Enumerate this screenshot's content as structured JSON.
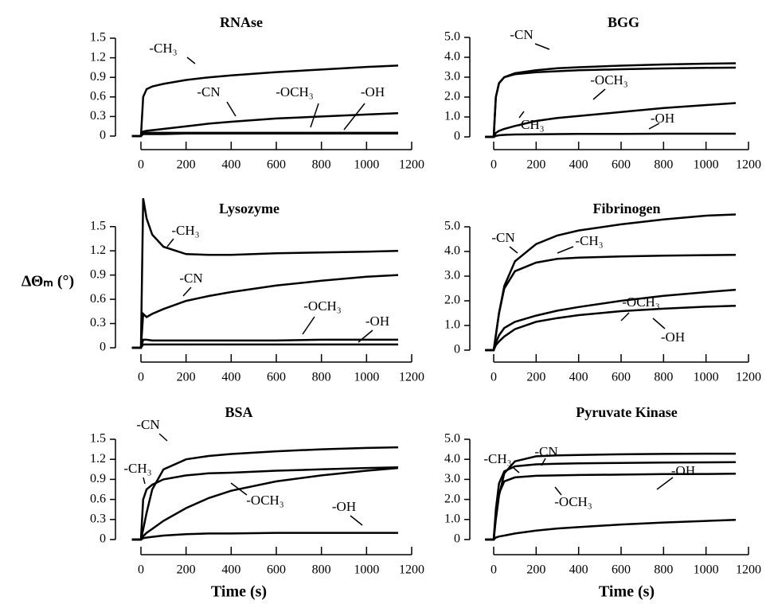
{
  "chart_data": [
    {
      "type": "line",
      "title": "RNAse",
      "xlim": [
        -60,
        1200
      ],
      "xticks": [
        0,
        200,
        400,
        600,
        800,
        1000,
        1200
      ],
      "ylim": [
        0,
        1.5
      ],
      "yticks": [
        0,
        0.3,
        0.6,
        0.9,
        1.2,
        1.5
      ],
      "x": [
        -40,
        0,
        10,
        25,
        50,
        100,
        200,
        300,
        400,
        600,
        800,
        1000,
        1140
      ],
      "series": [
        {
          "name": "-CH₃",
          "color": "#000000",
          "values": [
            0,
            0,
            0.6,
            0.72,
            0.76,
            0.8,
            0.86,
            0.9,
            0.93,
            0.98,
            1.02,
            1.06,
            1.08
          ]
        },
        {
          "name": "-CN",
          "color": "#000000",
          "values": [
            0,
            0,
            0.07,
            0.08,
            0.09,
            0.11,
            0.15,
            0.19,
            0.22,
            0.27,
            0.3,
            0.33,
            0.35
          ]
        },
        {
          "name": "-OCH₃",
          "color": "#000000",
          "values": [
            0,
            0,
            0.04,
            0.05,
            0.05,
            0.05,
            0.05,
            0.05,
            0.05,
            0.05,
            0.05,
            0.05,
            0.05
          ]
        },
        {
          "name": "-OH",
          "color": "#000000",
          "values": [
            0,
            0,
            0.03,
            0.03,
            0.03,
            0.03,
            0.04,
            0.04,
            0.04,
            0.04,
            0.04,
            0.04,
            0.04
          ]
        }
      ]
    },
    {
      "type": "line",
      "title": "BGG",
      "xlim": [
        -60,
        1200
      ],
      "xticks": [
        0,
        200,
        400,
        600,
        800,
        1000,
        1200
      ],
      "ylim": [
        0,
        5
      ],
      "yticks": [
        0,
        {
          "value": 1,
          "label": "1.0"
        },
        {
          "value": 2,
          "label": "2.0"
        },
        {
          "value": 3,
          "label": "3.0"
        },
        {
          "value": 4,
          "label": "4.0"
        },
        {
          "value": 5,
          "label": "5.0"
        }
      ],
      "x": [
        -40,
        0,
        10,
        25,
        50,
        100,
        200,
        300,
        400,
        600,
        800,
        1000,
        1140
      ],
      "series": [
        {
          "name": "-CN",
          "color": "#000000",
          "values": [
            0,
            0,
            2.0,
            2.7,
            3.0,
            3.2,
            3.35,
            3.45,
            3.5,
            3.58,
            3.64,
            3.68,
            3.7
          ]
        },
        {
          "name": "-CH₃",
          "color": "#000000",
          "values": [
            0,
            0,
            2.0,
            2.7,
            3.0,
            3.15,
            3.25,
            3.3,
            3.35,
            3.4,
            3.44,
            3.47,
            3.48
          ]
        },
        {
          "name": "-OCH₃",
          "color": "#000000",
          "values": [
            0,
            0,
            0.2,
            0.3,
            0.4,
            0.55,
            0.8,
            0.95,
            1.05,
            1.25,
            1.45,
            1.6,
            1.7
          ]
        },
        {
          "name": "-OH",
          "color": "#000000",
          "values": [
            0,
            0,
            0.05,
            0.08,
            0.1,
            0.12,
            0.13,
            0.14,
            0.15,
            0.15,
            0.16,
            0.16,
            0.16
          ]
        }
      ]
    },
    {
      "type": "line",
      "title": "Lysozyme",
      "ylabel": "ΔΘₘ (°)",
      "xlim": [
        -60,
        1200
      ],
      "xticks": [
        0,
        200,
        400,
        600,
        800,
        1000,
        1200
      ],
      "ylim": [
        0,
        2.0
      ],
      "yticks": [
        0,
        0.3,
        0.6,
        0.9,
        1.2,
        1.5
      ],
      "x": [
        -40,
        0,
        10,
        25,
        50,
        100,
        200,
        300,
        400,
        600,
        800,
        1000,
        1140
      ],
      "series": [
        {
          "name": "-CH₃",
          "color": "#000000",
          "values": [
            0,
            0,
            1.85,
            1.6,
            1.4,
            1.25,
            1.16,
            1.15,
            1.15,
            1.17,
            1.18,
            1.19,
            1.2
          ]
        },
        {
          "name": "-CN",
          "color": "#000000",
          "values": [
            0,
            0,
            0.42,
            0.38,
            0.42,
            0.48,
            0.58,
            0.64,
            0.69,
            0.77,
            0.83,
            0.88,
            0.9
          ]
        },
        {
          "name": "-OCH₃",
          "color": "#000000",
          "values": [
            0,
            0,
            0.1,
            0.1,
            0.09,
            0.09,
            0.09,
            0.09,
            0.09,
            0.09,
            0.1,
            0.1,
            0.1
          ]
        },
        {
          "name": "-OH",
          "color": "#000000",
          "values": [
            0,
            0,
            0.04,
            0.04,
            0.04,
            0.04,
            0.04,
            0.04,
            0.04,
            0.04,
            0.04,
            0.04,
            0.04
          ]
        }
      ]
    },
    {
      "type": "line",
      "title": "Fibrinogen",
      "xlim": [
        -60,
        1200
      ],
      "xticks": [
        0,
        200,
        400,
        600,
        800,
        1000,
        1200
      ],
      "ylim": [
        0,
        5.5
      ],
      "yticks": [
        0,
        {
          "value": 1,
          "label": "1.0"
        },
        {
          "value": 2,
          "label": "2.0"
        },
        {
          "value": 3,
          "label": "3.0"
        },
        {
          "value": 4,
          "label": "4.0"
        },
        {
          "value": 5,
          "label": "5.0"
        }
      ],
      "x": [
        -40,
        0,
        10,
        25,
        50,
        100,
        200,
        300,
        400,
        600,
        800,
        1000,
        1140
      ],
      "series": [
        {
          "name": "-CN",
          "color": "#000000",
          "values": [
            0,
            0,
            0.6,
            1.5,
            2.6,
            3.6,
            4.3,
            4.65,
            4.85,
            5.1,
            5.3,
            5.45,
            5.5
          ]
        },
        {
          "name": "-CH₃",
          "color": "#000000",
          "values": [
            0,
            0,
            0.6,
            1.5,
            2.5,
            3.2,
            3.55,
            3.7,
            3.75,
            3.8,
            3.83,
            3.85,
            3.86
          ]
        },
        {
          "name": "-OCH₃",
          "color": "#000000",
          "values": [
            0,
            0,
            0.3,
            0.6,
            0.9,
            1.15,
            1.4,
            1.6,
            1.75,
            2.0,
            2.2,
            2.35,
            2.45
          ]
        },
        {
          "name": "-OH",
          "color": "#000000",
          "values": [
            0,
            0,
            0.2,
            0.35,
            0.55,
            0.85,
            1.15,
            1.3,
            1.42,
            1.58,
            1.68,
            1.76,
            1.8
          ]
        }
      ]
    },
    {
      "type": "line",
      "title": "BSA",
      "xlabel": "Time (s)",
      "xlim": [
        -60,
        1200
      ],
      "xticks": [
        0,
        200,
        400,
        600,
        800,
        1000,
        1200
      ],
      "ylim": [
        0,
        1.5
      ],
      "yticks": [
        0,
        0.3,
        0.6,
        0.9,
        1.2,
        1.5
      ],
      "x": [
        -40,
        0,
        10,
        25,
        50,
        100,
        200,
        300,
        400,
        600,
        800,
        1000,
        1140
      ],
      "series": [
        {
          "name": "-CN",
          "color": "#000000",
          "values": [
            0,
            0,
            0.15,
            0.4,
            0.75,
            1.05,
            1.2,
            1.25,
            1.28,
            1.32,
            1.35,
            1.37,
            1.38
          ]
        },
        {
          "name": "-CH₃",
          "color": "#000000",
          "values": [
            0,
            0,
            0.6,
            0.75,
            0.82,
            0.9,
            0.96,
            0.99,
            1.0,
            1.03,
            1.05,
            1.07,
            1.08
          ]
        },
        {
          "name": "-OCH₃",
          "color": "#000000",
          "values": [
            0,
            0,
            0.05,
            0.1,
            0.16,
            0.28,
            0.47,
            0.62,
            0.73,
            0.87,
            0.96,
            1.03,
            1.07
          ]
        },
        {
          "name": "-OH",
          "color": "#000000",
          "values": [
            0,
            0,
            0.02,
            0.03,
            0.04,
            0.06,
            0.08,
            0.09,
            0.09,
            0.1,
            0.1,
            0.1,
            0.1
          ]
        }
      ]
    },
    {
      "type": "line",
      "title": "Pyruvate Kinase",
      "xlabel": "Time (s)",
      "xlim": [
        -60,
        1200
      ],
      "xticks": [
        0,
        200,
        400,
        600,
        800,
        1000,
        1200
      ],
      "ylim": [
        0,
        5
      ],
      "yticks": [
        0,
        {
          "value": 1,
          "label": "1.0"
        },
        {
          "value": 2,
          "label": "2.0"
        },
        {
          "value": 3,
          "label": "3.0"
        },
        {
          "value": 4,
          "label": "4.0"
        },
        {
          "value": 5,
          "label": "5.0"
        }
      ],
      "x": [
        -40,
        0,
        10,
        25,
        50,
        100,
        200,
        300,
        400,
        600,
        800,
        1000,
        1140
      ],
      "series": [
        {
          "name": "-CH₃",
          "color": "#000000",
          "values": [
            0,
            0,
            1.5,
            2.8,
            3.4,
            3.65,
            3.75,
            3.78,
            3.8,
            3.82,
            3.84,
            3.85,
            3.86
          ]
        },
        {
          "name": "-CN",
          "color": "#000000",
          "values": [
            0,
            0,
            1.0,
            2.2,
            3.3,
            3.9,
            4.15,
            4.2,
            4.22,
            4.25,
            4.27,
            4.28,
            4.28
          ]
        },
        {
          "name": "-OCH₃",
          "color": "#000000",
          "values": [
            0,
            0,
            1.2,
            2.3,
            2.9,
            3.1,
            3.18,
            3.2,
            3.22,
            3.24,
            3.26,
            3.27,
            3.28
          ]
        },
        {
          "name": "-OH",
          "color": "#000000",
          "values": [
            0,
            0,
            0.1,
            0.15,
            0.2,
            0.3,
            0.45,
            0.55,
            0.62,
            0.75,
            0.85,
            0.93,
            0.98
          ]
        }
      ]
    }
  ]
}
